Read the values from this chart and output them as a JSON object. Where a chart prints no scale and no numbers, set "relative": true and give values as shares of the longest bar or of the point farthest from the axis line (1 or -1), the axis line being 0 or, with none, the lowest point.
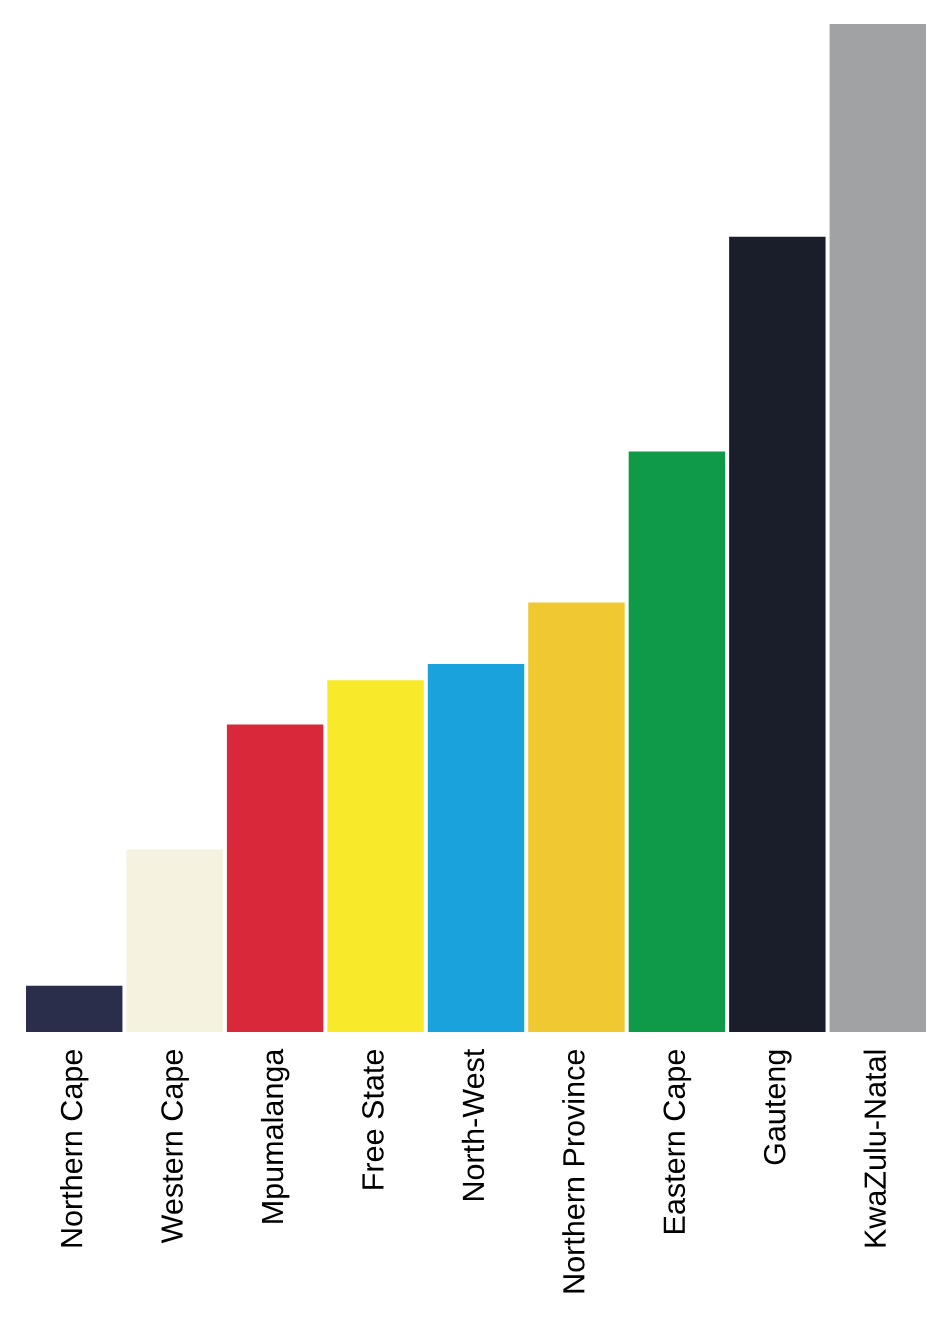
{
  "chart_data": {
    "type": "bar",
    "relative": true,
    "categories": [
      "Northern Cape",
      "Western Cape",
      "Mpumalanga",
      "Free State",
      "North-West",
      "Northern Province",
      "Eastern Cape",
      "Gauteng",
      "KwaZulu-Natal"
    ],
    "values": [
      0.046,
      0.181,
      0.305,
      0.349,
      0.365,
      0.426,
      0.576,
      0.789,
      1
    ],
    "colors": [
      "#2a2e4a",
      "#f5f3e0",
      "#d8283a",
      "#f8ea2a",
      "#1aa2dc",
      "#f0c832",
      "#0e9a48",
      "#1a1e2a",
      "#a0a2a4"
    ]
  }
}
